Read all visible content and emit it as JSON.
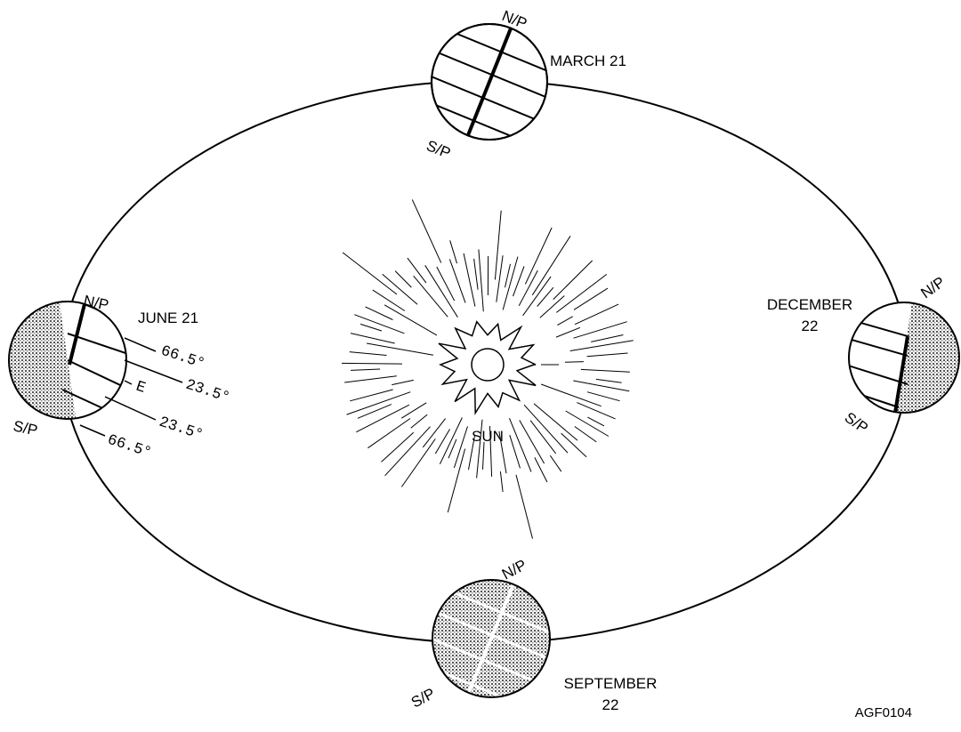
{
  "earths": [
    {
      "north": "N/P",
      "south": "S/P",
      "date": [
        "MARCH 21"
      ]
    },
    {
      "north": "N/P",
      "south": "S/P",
      "date": [
        "JUNE 21"
      ]
    },
    {
      "north": "N/P",
      "south": "S/P",
      "date": [
        "DECEMBER",
        "22"
      ]
    },
    {
      "north": "N/P",
      "south": "S/P",
      "date": [
        "SEPTEMBER",
        "22"
      ]
    }
  ],
  "sun": "SUN",
  "latitudes": [
    "66.5°",
    "23.5°",
    "E",
    "23.5°",
    "66.5°"
  ],
  "figure_id": "AGF0104"
}
